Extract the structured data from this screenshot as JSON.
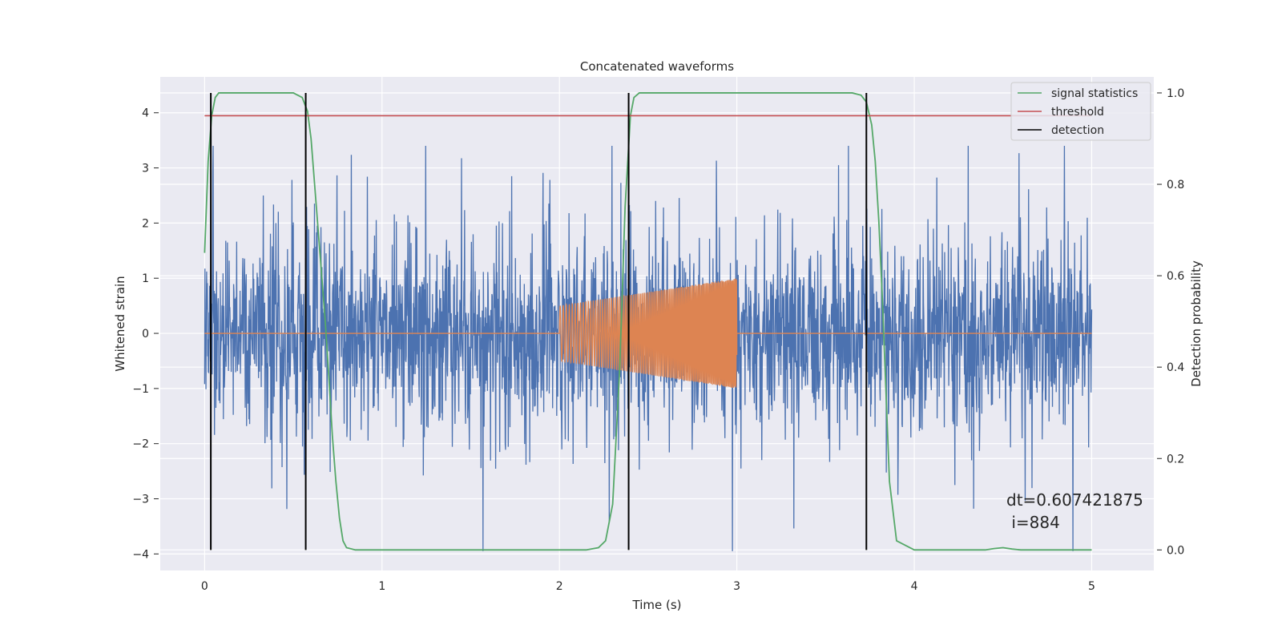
{
  "chart_data": {
    "type": "line",
    "title": "Concatenated waveforms",
    "xlabel": "Time (s)",
    "ylabel": "Whitened strain",
    "y2label": "Detection probability",
    "xlim": [
      -0.25,
      5.35
    ],
    "ylim": [
      -4.3,
      4.65
    ],
    "y2lim": [
      -0.045,
      1.035
    ],
    "xticks": [
      0,
      1,
      2,
      3,
      4,
      5
    ],
    "yticks": [
      -4,
      -3,
      -2,
      -1,
      0,
      1,
      2,
      3,
      4
    ],
    "y2ticks": [
      0.0,
      0.2,
      0.4,
      0.6,
      0.8,
      1.0
    ],
    "grid": true,
    "legend_position": "top-right",
    "annotation_lines": [
      "dt=0.607421875",
      " i=884"
    ],
    "colors": {
      "noise": "#4c72b0",
      "waveform": "#dd8452",
      "signal": "#55a868",
      "threshold": "#c44e52",
      "detection": "#000000",
      "background": "#eaeaf2"
    },
    "series": [
      {
        "axis": "left",
        "kind": "noise",
        "x_range": [
          0,
          5
        ],
        "amplitude_std": 1.0
      },
      {
        "axis": "left",
        "kind": "chirp",
        "x_range": [
          0,
          5
        ],
        "active_range": [
          2.0,
          3.0
        ],
        "amplitude_start": 0.5,
        "amplitude_end": 1.0,
        "frequency_start": 55,
        "frequency_end": 150
      },
      {
        "name": "signal statistics",
        "axis": "right",
        "x": [
          0,
          0.02,
          0.04,
          0.06,
          0.08,
          0.1,
          0.15,
          0.2,
          0.3,
          0.4,
          0.5,
          0.55,
          0.58,
          0.6,
          0.62,
          0.65,
          0.68,
          0.7,
          0.72,
          0.74,
          0.76,
          0.78,
          0.8,
          0.85,
          1.0,
          1.5,
          2.0,
          2.15,
          2.22,
          2.26,
          2.3,
          2.34,
          2.37,
          2.4,
          2.42,
          2.45,
          2.5,
          3.0,
          3.5,
          3.65,
          3.7,
          3.73,
          3.76,
          3.78,
          3.8,
          3.82,
          3.84,
          3.86,
          3.9,
          4.0,
          4.4,
          4.45,
          4.5,
          4.55,
          4.6,
          5.0
        ],
        "y": [
          0.65,
          0.85,
          0.95,
          0.99,
          1.0,
          1.0,
          1.0,
          1.0,
          1.0,
          1.0,
          1.0,
          0.99,
          0.96,
          0.9,
          0.8,
          0.65,
          0.5,
          0.38,
          0.25,
          0.15,
          0.07,
          0.02,
          0.005,
          0.0,
          0.0,
          0.0,
          0.0,
          0.0,
          0.005,
          0.02,
          0.1,
          0.4,
          0.75,
          0.95,
          0.99,
          1.0,
          1.0,
          1.0,
          1.0,
          1.0,
          0.995,
          0.98,
          0.93,
          0.85,
          0.72,
          0.55,
          0.35,
          0.15,
          0.02,
          0.0,
          0.0,
          0.003,
          0.005,
          0.002,
          0.0,
          0.0
        ]
      },
      {
        "name": "threshold",
        "axis": "right",
        "x": [
          0,
          5
        ],
        "y": [
          0.95,
          0.95
        ]
      },
      {
        "name": "detection",
        "axis": "right",
        "x": [
          0.035,
          0.57,
          2.39,
          3.73
        ],
        "y_range": [
          0,
          1.0
        ]
      }
    ]
  }
}
